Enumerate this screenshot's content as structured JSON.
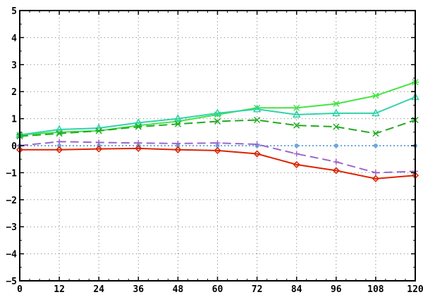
{
  "chart_data": {
    "type": "line",
    "title": "",
    "xlabel": "",
    "ylabel": "",
    "xlim": [
      0,
      120
    ],
    "ylim": [
      -5,
      5
    ],
    "x": [
      0,
      12,
      24,
      36,
      48,
      60,
      72,
      84,
      96,
      108,
      120
    ],
    "xticks": [
      "0",
      "12",
      "24",
      "36",
      "48",
      "60",
      "72",
      "84",
      "96",
      "108",
      "120"
    ],
    "yticks": [
      "5",
      "4",
      "3",
      "2",
      "1",
      "0",
      "−1",
      "−2",
      "−3",
      "−4",
      "−5"
    ],
    "grid": true,
    "legend": "none",
    "series": [
      {
        "color": "#44e344",
        "marker": "star",
        "dash": "solid",
        "values": [
          0.4,
          0.5,
          0.55,
          0.75,
          0.9,
          1.15,
          1.4,
          1.4,
          1.55,
          1.85,
          2.35
        ]
      },
      {
        "color": "#2fd3a8",
        "marker": "triangle",
        "dash": "solid",
        "values": [
          0.4,
          0.6,
          0.65,
          0.85,
          1.0,
          1.2,
          1.35,
          1.15,
          1.2,
          1.2,
          1.8
        ]
      },
      {
        "color": "#22aa22",
        "marker": "x",
        "dash": "dashed",
        "values": [
          0.35,
          0.45,
          0.55,
          0.7,
          0.8,
          0.9,
          0.95,
          0.75,
          0.7,
          0.45,
          0.95
        ]
      },
      {
        "color": "#6ba8e0",
        "marker": "circle",
        "dash": "dotted",
        "values": [
          0.0,
          0.0,
          0.0,
          0.0,
          0.0,
          0.0,
          0.0,
          0.0,
          0.0,
          0.0,
          0.0
        ]
      },
      {
        "color": "#9b66c9",
        "marker": "plus",
        "dash": "dashed",
        "values": [
          0.0,
          0.15,
          0.12,
          0.1,
          0.08,
          0.1,
          0.05,
          -0.3,
          -0.6,
          -1.0,
          -0.95
        ]
      },
      {
        "color": "#dd2200",
        "marker": "diamond",
        "dash": "solid",
        "values": [
          -0.15,
          -0.15,
          -0.12,
          -0.1,
          -0.15,
          -0.18,
          -0.3,
          -0.7,
          -0.92,
          -1.22,
          -1.1
        ]
      }
    ]
  }
}
